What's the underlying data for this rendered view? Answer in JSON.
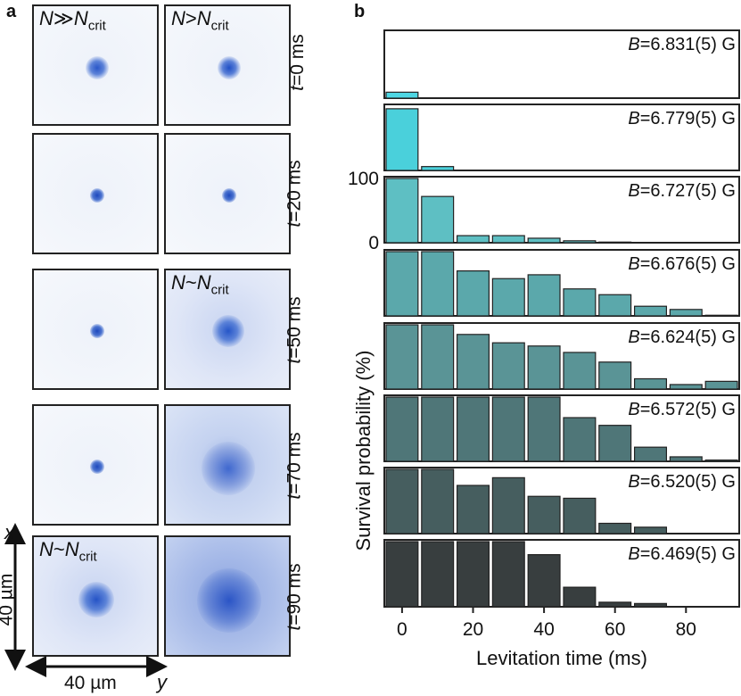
{
  "panel_a": {
    "label": "a",
    "col1_label": {
      "n": "N",
      "rel": "≫",
      "ncrit": "N",
      "sub": "crit"
    },
    "col2_label": {
      "n": "N",
      "rel": ">",
      "ncrit": "N",
      "sub": "crit"
    },
    "mid_label": {
      "n": "N",
      "rel": "~",
      "ncrit": "N",
      "sub": "crit"
    },
    "bottom_label": {
      "n": "N",
      "rel": "~",
      "ncrit": "N",
      "sub": "crit"
    },
    "time_labels": [
      {
        "t": "t",
        "rest": "=0 ms"
      },
      {
        "t": "t",
        "rest": "=20 ms"
      },
      {
        "t": "t",
        "rest": "=50 ms"
      },
      {
        "t": "t",
        "rest": "=70 ms"
      },
      {
        "t": "t",
        "rest": "=90 ms"
      }
    ],
    "scale_x": "x",
    "scale_y": "y",
    "scale_vertical": "40 µm",
    "scale_horizontal": "40 µm"
  },
  "panel_b_label": "b",
  "chart_data": {
    "type": "bar",
    "xlabel": "Levitation time (ms)",
    "ylabel": "Survival probability (%)",
    "xticks": [
      "0",
      "20",
      "40",
      "60",
      "80"
    ],
    "xlim": [
      -5,
      95
    ],
    "ylim": [
      0,
      100
    ],
    "yticks": [
      "100",
      "0"
    ],
    "x": [
      0,
      10,
      20,
      30,
      40,
      50,
      60,
      70,
      80,
      90
    ],
    "series": [
      {
        "name": "B=6.831(5) G",
        "field": "=6.831(5) G",
        "color": "#4dd6e3",
        "values": [
          9,
          0,
          0,
          0,
          0,
          0,
          0,
          0,
          0,
          0
        ]
      },
      {
        "name": "B=6.779(5) G",
        "field": "=6.779(5) G",
        "color": "#4ad0db",
        "values": [
          96,
          6,
          0,
          0,
          0,
          0,
          0,
          0,
          0,
          0
        ]
      },
      {
        "name": "B=6.727(5) G",
        "field": "=6.727(5) G",
        "color": "#5ebfc3",
        "values": [
          100,
          72,
          11,
          11,
          7,
          3,
          1,
          0,
          0,
          0
        ]
      },
      {
        "name": "B=6.676(5) G",
        "field": "=6.676(5) G",
        "color": "#5ba8ab",
        "values": [
          100,
          100,
          70,
          58,
          64,
          42,
          33,
          15,
          10,
          1
        ]
      },
      {
        "name": "B=6.624(5) G",
        "field": "=6.624(5) G",
        "color": "#5a9496",
        "values": [
          100,
          100,
          85,
          72,
          67,
          57,
          42,
          16,
          7,
          12
        ]
      },
      {
        "name": "B=6.572(5) G",
        "field": "=6.572(5) G",
        "color": "#4f7678",
        "values": [
          100,
          100,
          100,
          100,
          100,
          68,
          56,
          22,
          7,
          2
        ]
      },
      {
        "name": "B=6.520(5) G",
        "field": "=6.520(5) G",
        "color": "#465e5f",
        "values": [
          100,
          100,
          75,
          87,
          58,
          55,
          16,
          10,
          0,
          0
        ]
      },
      {
        "name": "B=6.469(5) G",
        "field": "=6.469(5) G",
        "color": "#383e3f",
        "values": [
          100,
          100,
          100,
          100,
          80,
          30,
          7,
          5,
          0,
          0
        ]
      }
    ]
  }
}
